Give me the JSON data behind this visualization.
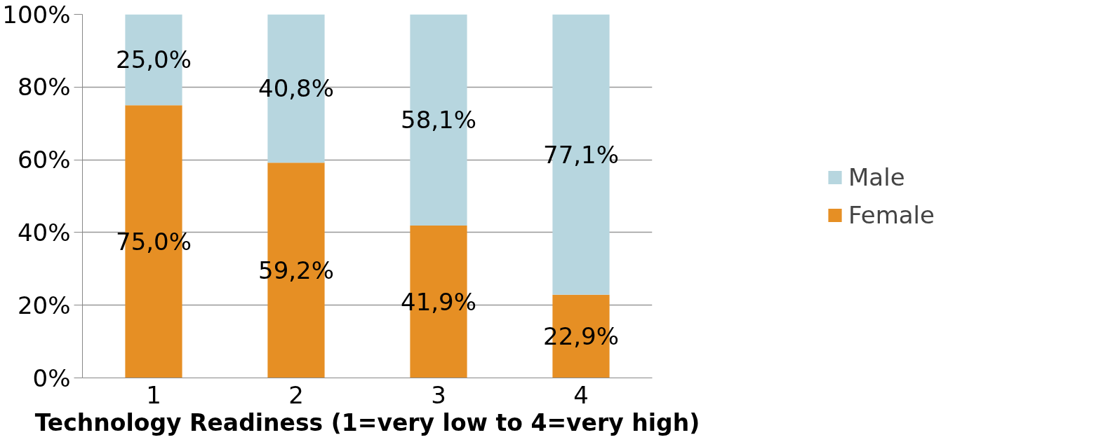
{
  "chart_data": {
    "type": "bar",
    "stacked": true,
    "xlabel": "Technology Readiness (1=very low to 4=very high)",
    "categories": [
      "1",
      "2",
      "3",
      "4"
    ],
    "series": [
      {
        "name": "Female",
        "color": "#e68f24",
        "values": [
          75.0,
          59.2,
          41.9,
          22.9
        ],
        "value_labels": [
          "75,0%",
          "59,2%",
          "41,9%",
          "22,9%"
        ]
      },
      {
        "name": "Male",
        "color": "#b7d6df",
        "values": [
          25.0,
          40.8,
          58.1,
          77.1
        ],
        "value_labels": [
          "25,0%",
          "40,8%",
          "58,1%",
          "77,1%"
        ]
      }
    ],
    "ylim": [
      0,
      100
    ],
    "yticks": [
      {
        "value": 0,
        "label": "0%"
      },
      {
        "value": 20,
        "label": "20%"
      },
      {
        "value": 40,
        "label": "40%"
      },
      {
        "value": 60,
        "label": "60%"
      },
      {
        "value": 80,
        "label": "80%"
      },
      {
        "value": 100,
        "label": "100%"
      }
    ],
    "grid": "y",
    "legend": "right"
  }
}
